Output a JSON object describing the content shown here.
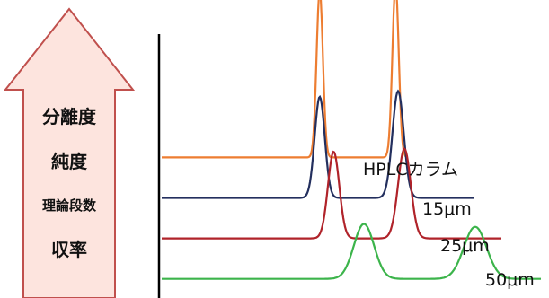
{
  "arrow": {
    "fill": "#fde4de",
    "stroke": "#c0504d",
    "labels": [
      "分離度",
      "純度",
      "理論段数",
      "収率"
    ]
  },
  "chart_data": {
    "type": "line",
    "title": "",
    "xlabel": "",
    "ylabel": "",
    "grid": false,
    "legend": "none",
    "series": [
      {
        "name": "HPLCカラム",
        "color": "#ed7d31",
        "offset": 0.48,
        "peaks": [
          {
            "x": 1.25,
            "h": 0.58,
            "w": 0.025
          },
          {
            "x": 1.85,
            "h": 0.6,
            "w": 0.025
          }
        ]
      },
      {
        "name": "15μm",
        "color": "#232f5e",
        "offset": 0.34,
        "peaks": [
          {
            "x": 1.25,
            "h": 0.35,
            "w": 0.04
          },
          {
            "x": 1.87,
            "h": 0.37,
            "w": 0.045
          }
        ]
      },
      {
        "name": "25μm",
        "color": "#b0232a",
        "offset": 0.2,
        "peaks": [
          {
            "x": 1.36,
            "h": 0.3,
            "w": 0.045
          },
          {
            "x": 1.92,
            "h": 0.31,
            "w": 0.05
          }
        ]
      },
      {
        "name": "50μm",
        "color": "#3cb44b",
        "offset": 0.06,
        "peaks": [
          {
            "x": 1.6,
            "h": 0.19,
            "w": 0.08
          },
          {
            "x": 2.48,
            "h": 0.18,
            "w": 0.09
          }
        ]
      }
    ]
  }
}
